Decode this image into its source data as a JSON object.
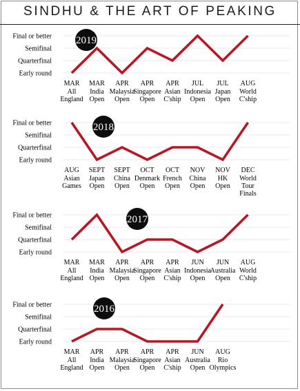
{
  "title": "SINDHU & THE ART OF PEAKING",
  "colors": {
    "line": "#c1121f",
    "badge": "#0d0d0d",
    "badge_text": "#ffffff",
    "grid": "#d6d6d6"
  },
  "y_levels": [
    "Early round",
    "Quarterfinal",
    "Semifinal",
    "Final or better"
  ],
  "chart_data": [
    {
      "type": "line",
      "badge": "2019",
      "months": [
        "MAR",
        "MAR",
        "APR",
        "APR",
        "APR",
        "JUL",
        "JUL",
        "AUG"
      ],
      "events": [
        [
          "All",
          "England"
        ],
        [
          "India",
          "Open"
        ],
        [
          "Malaysia",
          "Open"
        ],
        [
          "Singapore",
          "Open"
        ],
        [
          "Asian",
          "C'ship"
        ],
        [
          "Indonesia",
          "Open"
        ],
        [
          "Japan",
          "Open"
        ],
        [
          "World",
          "C'ship"
        ]
      ],
      "values": [
        0,
        2,
        0,
        2,
        1,
        3,
        1,
        3
      ]
    },
    {
      "type": "line",
      "badge": "2018",
      "months": [
        "AUG",
        "SEPT",
        "SEPT",
        "OCT",
        "OCT",
        "NOV",
        "NOV",
        "DEC"
      ],
      "events": [
        [
          "Asian",
          "Games"
        ],
        [
          "Japan",
          "Open"
        ],
        [
          "China",
          "Open"
        ],
        [
          "Denmark",
          "Open"
        ],
        [
          "French",
          "Open"
        ],
        [
          "China",
          "Open"
        ],
        [
          "HK",
          "Open"
        ],
        [
          "World",
          "Tour",
          "Finals"
        ]
      ],
      "values": [
        3,
        0,
        1,
        0,
        1,
        1,
        0,
        3
      ]
    },
    {
      "type": "line",
      "badge": "2017",
      "months": [
        "MAR",
        "MAR",
        "APR",
        "APR",
        "APR",
        "JUN",
        "JUN",
        "AUG"
      ],
      "events": [
        [
          "All",
          "England"
        ],
        [
          "India",
          "Open"
        ],
        [
          "Malaysia",
          "Open"
        ],
        [
          "Singapore",
          "Open"
        ],
        [
          "Asian",
          "C'ship"
        ],
        [
          "Indonesia",
          "Open"
        ],
        [
          "Australia",
          "Open"
        ],
        [
          "World",
          "C'ship"
        ]
      ],
      "values": [
        1,
        3,
        0,
        1,
        1,
        0,
        1,
        3
      ]
    },
    {
      "type": "line",
      "badge": "2016",
      "months": [
        "MAR",
        "APR",
        "APR",
        "APR",
        "APR",
        "JUN",
        "AUG"
      ],
      "events": [
        [
          "All",
          "England"
        ],
        [
          "India",
          "Open"
        ],
        [
          "Malaysia",
          "Open"
        ],
        [
          "Singapore",
          "Open"
        ],
        [
          "Asian",
          "C'ship"
        ],
        [
          "Australia",
          "Open"
        ],
        [
          "Rio",
          "Olympics"
        ]
      ],
      "values": [
        0,
        1,
        1,
        0,
        0,
        0,
        3
      ]
    }
  ]
}
